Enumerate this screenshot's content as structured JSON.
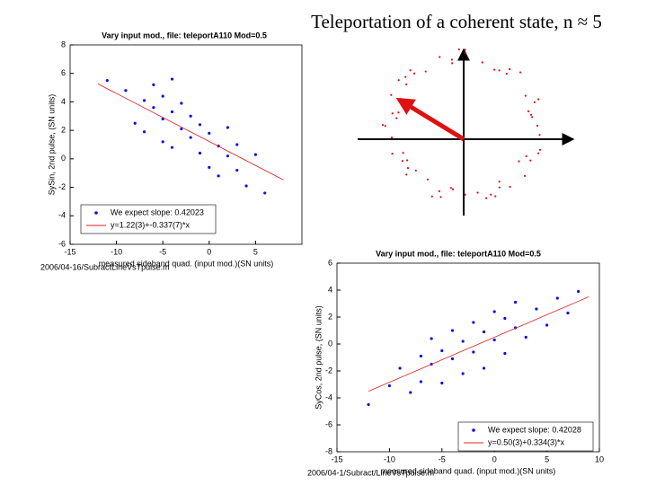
{
  "title": "Teleportation of a coherent state, n ≈ 5",
  "chart_data": [
    {
      "type": "scatter",
      "title": "Vary input mod., file: teleportA110 Mod=0.5",
      "xlabel": "measured sideband quad. (input mod.)(SN units)",
      "ylabel": "SySin, 2nd pulse, (SN units)",
      "footer": "2006/04-16/SubractLineVsTpulse.m",
      "xlim": [
        -15,
        10
      ],
      "xticks": [
        -15,
        -10,
        -5,
        0,
        5
      ],
      "ylim": [
        -6,
        8
      ],
      "yticks": [
        -6,
        -4,
        -2,
        0,
        2,
        4,
        6,
        8
      ],
      "series": [
        {
          "name": "We expect slope: 0.42023",
          "color": "#1010e0",
          "x": [
            -11,
            -9,
            -8,
            -7,
            -7,
            -6,
            -6,
            -5,
            -5,
            -5,
            -4,
            -4,
            -4,
            -3,
            -3,
            -2,
            -2,
            -1,
            -1,
            0,
            0,
            1,
            1,
            2,
            2,
            3,
            3,
            4,
            5,
            6
          ],
          "values": [
            5.5,
            4.8,
            2.5,
            4.1,
            1.9,
            3.6,
            5.2,
            2.8,
            4.4,
            1.2,
            3.3,
            0.8,
            5.6,
            2.1,
            3.9,
            1.5,
            3.0,
            0.4,
            2.4,
            -0.6,
            1.8,
            0.9,
            -1.2,
            0.2,
            2.2,
            -0.8,
            1.0,
            -1.9,
            0.3,
            -2.4
          ]
        },
        {
          "name": "y=1.22(3)+-0.337(7)*x",
          "color": "#e02020",
          "line": true,
          "x": [
            -12,
            8
          ],
          "values": [
            5.264,
            -1.476
          ]
        }
      ]
    },
    {
      "type": "scatter",
      "title": "Vary input mod., file: teleportA110 Mod=0.5",
      "xlabel": "measured sideband quad. (input mod.)(SN units)",
      "ylabel": "SyCos, 2nd pulse, (SN units)",
      "footer": "2006/04-1/Subract/LineVsTpulse.m",
      "xlim": [
        -15,
        10
      ],
      "xticks": [
        -15,
        -10,
        -5,
        0,
        5,
        10
      ],
      "ylim": [
        -8,
        6
      ],
      "yticks": [
        -8,
        -6,
        -4,
        -2,
        0,
        2,
        4,
        6
      ],
      "series": [
        {
          "name": "We expect slope: 0.42028",
          "color": "#1010e0",
          "x": [
            -12,
            -10,
            -9,
            -8,
            -7,
            -7,
            -6,
            -6,
            -5,
            -5,
            -4,
            -4,
            -3,
            -3,
            -2,
            -2,
            -1,
            -1,
            0,
            0,
            1,
            1,
            2,
            2,
            3,
            4,
            5,
            6,
            7,
            8
          ],
          "values": [
            -4.5,
            -3.1,
            -1.8,
            -3.6,
            -0.9,
            -2.8,
            -1.5,
            0.4,
            -2.9,
            -0.5,
            -1.1,
            1.0,
            -2.2,
            0.2,
            -0.6,
            1.6,
            -1.8,
            0.9,
            0.3,
            2.4,
            -0.7,
            1.9,
            1.2,
            3.1,
            0.5,
            2.6,
            1.4,
            3.4,
            2.3,
            3.9
          ]
        },
        {
          "name": "y=0.50(3)+0.334(3)*x",
          "color": "#e02020",
          "line": true,
          "x": [
            -12,
            9
          ],
          "values": [
            -3.508,
            3.506
          ]
        }
      ]
    }
  ]
}
